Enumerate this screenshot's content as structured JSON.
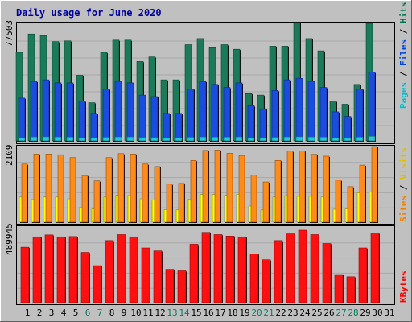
{
  "chart_data": [
    {
      "type": "bar",
      "title": "Daily usage for June 2020",
      "max_label": "77503",
      "legend": [
        {
          "label": "Pages",
          "color": "#00c0d0"
        },
        {
          "label": " / ",
          "color": "#000000"
        },
        {
          "label": "Files",
          "color": "#0044dd"
        },
        {
          "label": " / ",
          "color": "#000000"
        },
        {
          "label": "Hits",
          "color": "#007050"
        }
      ],
      "categories": [
        "1",
        "2",
        "3",
        "4",
        "5",
        "6",
        "7",
        "8",
        "9",
        "10",
        "11",
        "12",
        "13",
        "14",
        "15",
        "16",
        "17",
        "18",
        "19",
        "20",
        "21",
        "22",
        "23",
        "24",
        "25",
        "26",
        "27",
        "28",
        "29",
        "30",
        "31"
      ],
      "weekend_days": [
        "6",
        "7",
        "13",
        "14",
        "20",
        "21",
        "27",
        "28"
      ],
      "series": [
        {
          "name": "Hits",
          "color": "#1a7a5a",
          "values": [
            58000,
            70000,
            69000,
            65000,
            65500,
            43000,
            25000,
            58000,
            66000,
            66000,
            52000,
            55000,
            40000,
            40000,
            63000,
            67000,
            61000,
            63000,
            60000,
            31000,
            30000,
            62000,
            62000,
            77503,
            67000,
            59000,
            26000,
            24000,
            37000,
            77000,
            0
          ]
        },
        {
          "name": "Files",
          "color": "#1a4ce0",
          "values": [
            28000,
            39000,
            40000,
            38000,
            38000,
            26000,
            18000,
            34000,
            39000,
            38000,
            30000,
            29000,
            18000,
            18000,
            34000,
            39000,
            37000,
            35000,
            38000,
            23000,
            21000,
            33000,
            40000,
            41000,
            39000,
            35000,
            19000,
            16000,
            34000,
            45000,
            0
          ]
        },
        {
          "name": "Pages",
          "color": "#20c8d8",
          "values": [
            2200,
            2600,
            2700,
            2600,
            2500,
            2200,
            1800,
            2400,
            2600,
            2600,
            2300,
            2300,
            1800,
            1800,
            2400,
            2600,
            2500,
            2500,
            2600,
            2000,
            1900,
            2400,
            2600,
            2700,
            2600,
            2500,
            1800,
            1700,
            2500,
            3000,
            0
          ]
        }
      ]
    },
    {
      "type": "bar",
      "max_label": "2109",
      "legend": [
        {
          "label": "Sites",
          "color": "#f08000"
        },
        {
          "label": " / ",
          "color": "#000000"
        },
        {
          "label": "Visits",
          "color": "#d8c000"
        }
      ],
      "categories": [
        "1",
        "2",
        "3",
        "4",
        "5",
        "6",
        "7",
        "8",
        "9",
        "10",
        "11",
        "12",
        "13",
        "14",
        "15",
        "16",
        "17",
        "18",
        "19",
        "20",
        "21",
        "22",
        "23",
        "24",
        "25",
        "26",
        "27",
        "28",
        "29",
        "30",
        "31"
      ],
      "series": [
        {
          "name": "Visits",
          "color": "#ffff00",
          "values": [
            700,
            630,
            700,
            700,
            650,
            420,
            370,
            700,
            750,
            740,
            650,
            620,
            350,
            340,
            640,
            770,
            770,
            750,
            780,
            450,
            340,
            700,
            740,
            720,
            720,
            700,
            360,
            370,
            820,
            840,
            0
          ]
        },
        {
          "name": "Sites",
          "color": "#ff8c1a",
          "values": [
            1620,
            1900,
            1900,
            1880,
            1800,
            1300,
            1150,
            1800,
            1910,
            1900,
            1620,
            1550,
            1060,
            1080,
            1720,
            2000,
            2010,
            1920,
            1860,
            1310,
            1120,
            1720,
            1980,
            1990,
            1890,
            1840,
            1170,
            990,
            1590,
            2109,
            0
          ]
        }
      ]
    },
    {
      "type": "bar",
      "max_label": "489945",
      "legend": [
        {
          "label": "KBytes",
          "color": "#ff0000"
        }
      ],
      "categories": [
        "1",
        "2",
        "3",
        "4",
        "5",
        "6",
        "7",
        "8",
        "9",
        "10",
        "11",
        "12",
        "13",
        "14",
        "15",
        "16",
        "17",
        "18",
        "19",
        "20",
        "21",
        "22",
        "23",
        "24",
        "25",
        "26",
        "27",
        "28",
        "29",
        "30",
        "31"
      ],
      "series": [
        {
          "name": "KBytes",
          "color": "#ff1010",
          "values": [
            375000,
            445000,
            458000,
            445000,
            447000,
            340000,
            250000,
            420000,
            460000,
            445000,
            370000,
            350000,
            225000,
            215000,
            395000,
            475000,
            460000,
            450000,
            445000,
            330000,
            290000,
            420000,
            465000,
            489945,
            460000,
            400000,
            190000,
            175000,
            370000,
            470000,
            0
          ]
        }
      ]
    }
  ]
}
